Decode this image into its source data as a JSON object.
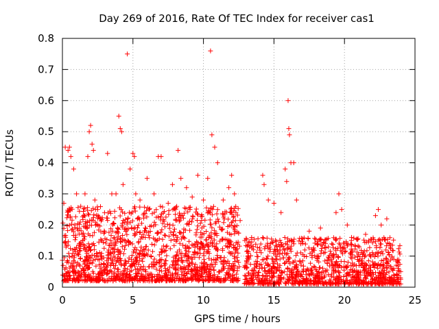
{
  "chart_data": {
    "type": "scatter",
    "title": "Day 269 of 2016, Rate Of TEC Index for receiver cas1",
    "xlabel": "GPS time / hours",
    "ylabel": "ROTI / TECUs",
    "xlim": [
      0,
      25
    ],
    "ylim": [
      0,
      0.8
    ],
    "xticks": [
      0,
      5,
      10,
      15,
      20,
      25
    ],
    "yticks": [
      0,
      0.1,
      0.2,
      0.3,
      0.4,
      0.5,
      0.6,
      0.7,
      0.8
    ],
    "xtick_labels": [
      "0",
      "5",
      "10",
      "15",
      "20",
      "25"
    ],
    "ytick_labels": [
      "0",
      "0.1",
      "0.2",
      "0.3",
      "0.4",
      "0.5",
      "0.6",
      "0.7",
      "0.8"
    ],
    "grid": true,
    "marker": "+",
    "color": "#ff0000",
    "series": [
      {
        "name": "ROTI",
        "points": [
          [
            0.1,
            0.27
          ],
          [
            0.2,
            0.45
          ],
          [
            0.4,
            0.44
          ],
          [
            0.5,
            0.45
          ],
          [
            0.6,
            0.42
          ],
          [
            0.8,
            0.38
          ],
          [
            1.0,
            0.3
          ],
          [
            1.3,
            0.26
          ],
          [
            1.6,
            0.3
          ],
          [
            1.8,
            0.42
          ],
          [
            1.9,
            0.5
          ],
          [
            2.0,
            0.52
          ],
          [
            2.1,
            0.46
          ],
          [
            2.2,
            0.44
          ],
          [
            2.3,
            0.28
          ],
          [
            2.5,
            0.25
          ],
          [
            3.2,
            0.43
          ],
          [
            3.5,
            0.3
          ],
          [
            3.8,
            0.3
          ],
          [
            4.0,
            0.55
          ],
          [
            4.1,
            0.51
          ],
          [
            4.2,
            0.5
          ],
          [
            4.3,
            0.33
          ],
          [
            4.6,
            0.75
          ],
          [
            4.8,
            0.38
          ],
          [
            5.0,
            0.43
          ],
          [
            5.1,
            0.42
          ],
          [
            5.2,
            0.3
          ],
          [
            5.5,
            0.28
          ],
          [
            6.0,
            0.35
          ],
          [
            6.5,
            0.3
          ],
          [
            6.8,
            0.42
          ],
          [
            7.0,
            0.42
          ],
          [
            7.5,
            0.27
          ],
          [
            7.8,
            0.33
          ],
          [
            8.2,
            0.44
          ],
          [
            8.4,
            0.35
          ],
          [
            8.8,
            0.32
          ],
          [
            9.2,
            0.29
          ],
          [
            9.6,
            0.36
          ],
          [
            10.0,
            0.28
          ],
          [
            10.3,
            0.35
          ],
          [
            10.5,
            0.76
          ],
          [
            10.6,
            0.49
          ],
          [
            10.8,
            0.45
          ],
          [
            11.0,
            0.4
          ],
          [
            11.4,
            0.28
          ],
          [
            11.8,
            0.32
          ],
          [
            12.0,
            0.36
          ],
          [
            12.2,
            0.3
          ],
          [
            12.3,
            0.24
          ],
          [
            14.2,
            0.36
          ],
          [
            14.3,
            0.33
          ],
          [
            14.6,
            0.28
          ],
          [
            15.0,
            0.27
          ],
          [
            15.5,
            0.24
          ],
          [
            15.8,
            0.38
          ],
          [
            15.9,
            0.34
          ],
          [
            16.0,
            0.6
          ],
          [
            16.05,
            0.51
          ],
          [
            16.1,
            0.49
          ],
          [
            16.2,
            0.4
          ],
          [
            16.4,
            0.4
          ],
          [
            16.6,
            0.28
          ],
          [
            17.5,
            0.18
          ],
          [
            18.3,
            0.19
          ],
          [
            19.4,
            0.24
          ],
          [
            19.6,
            0.3
          ],
          [
            19.8,
            0.25
          ],
          [
            20.2,
            0.2
          ],
          [
            20.5,
            0.16
          ],
          [
            21.5,
            0.17
          ],
          [
            22.2,
            0.23
          ],
          [
            22.4,
            0.25
          ],
          [
            22.6,
            0.2
          ],
          [
            23.0,
            0.22
          ],
          [
            23.5,
            0.09
          ]
        ]
      }
    ],
    "density_bands": [
      {
        "x_start": 0.0,
        "x_end": 12.6,
        "density": 120,
        "y_low": 0.02,
        "y_high": 0.26
      },
      {
        "x_start": 12.9,
        "x_end": 24.0,
        "density": 100,
        "y_low": 0.01,
        "y_high": 0.16
      }
    ]
  }
}
